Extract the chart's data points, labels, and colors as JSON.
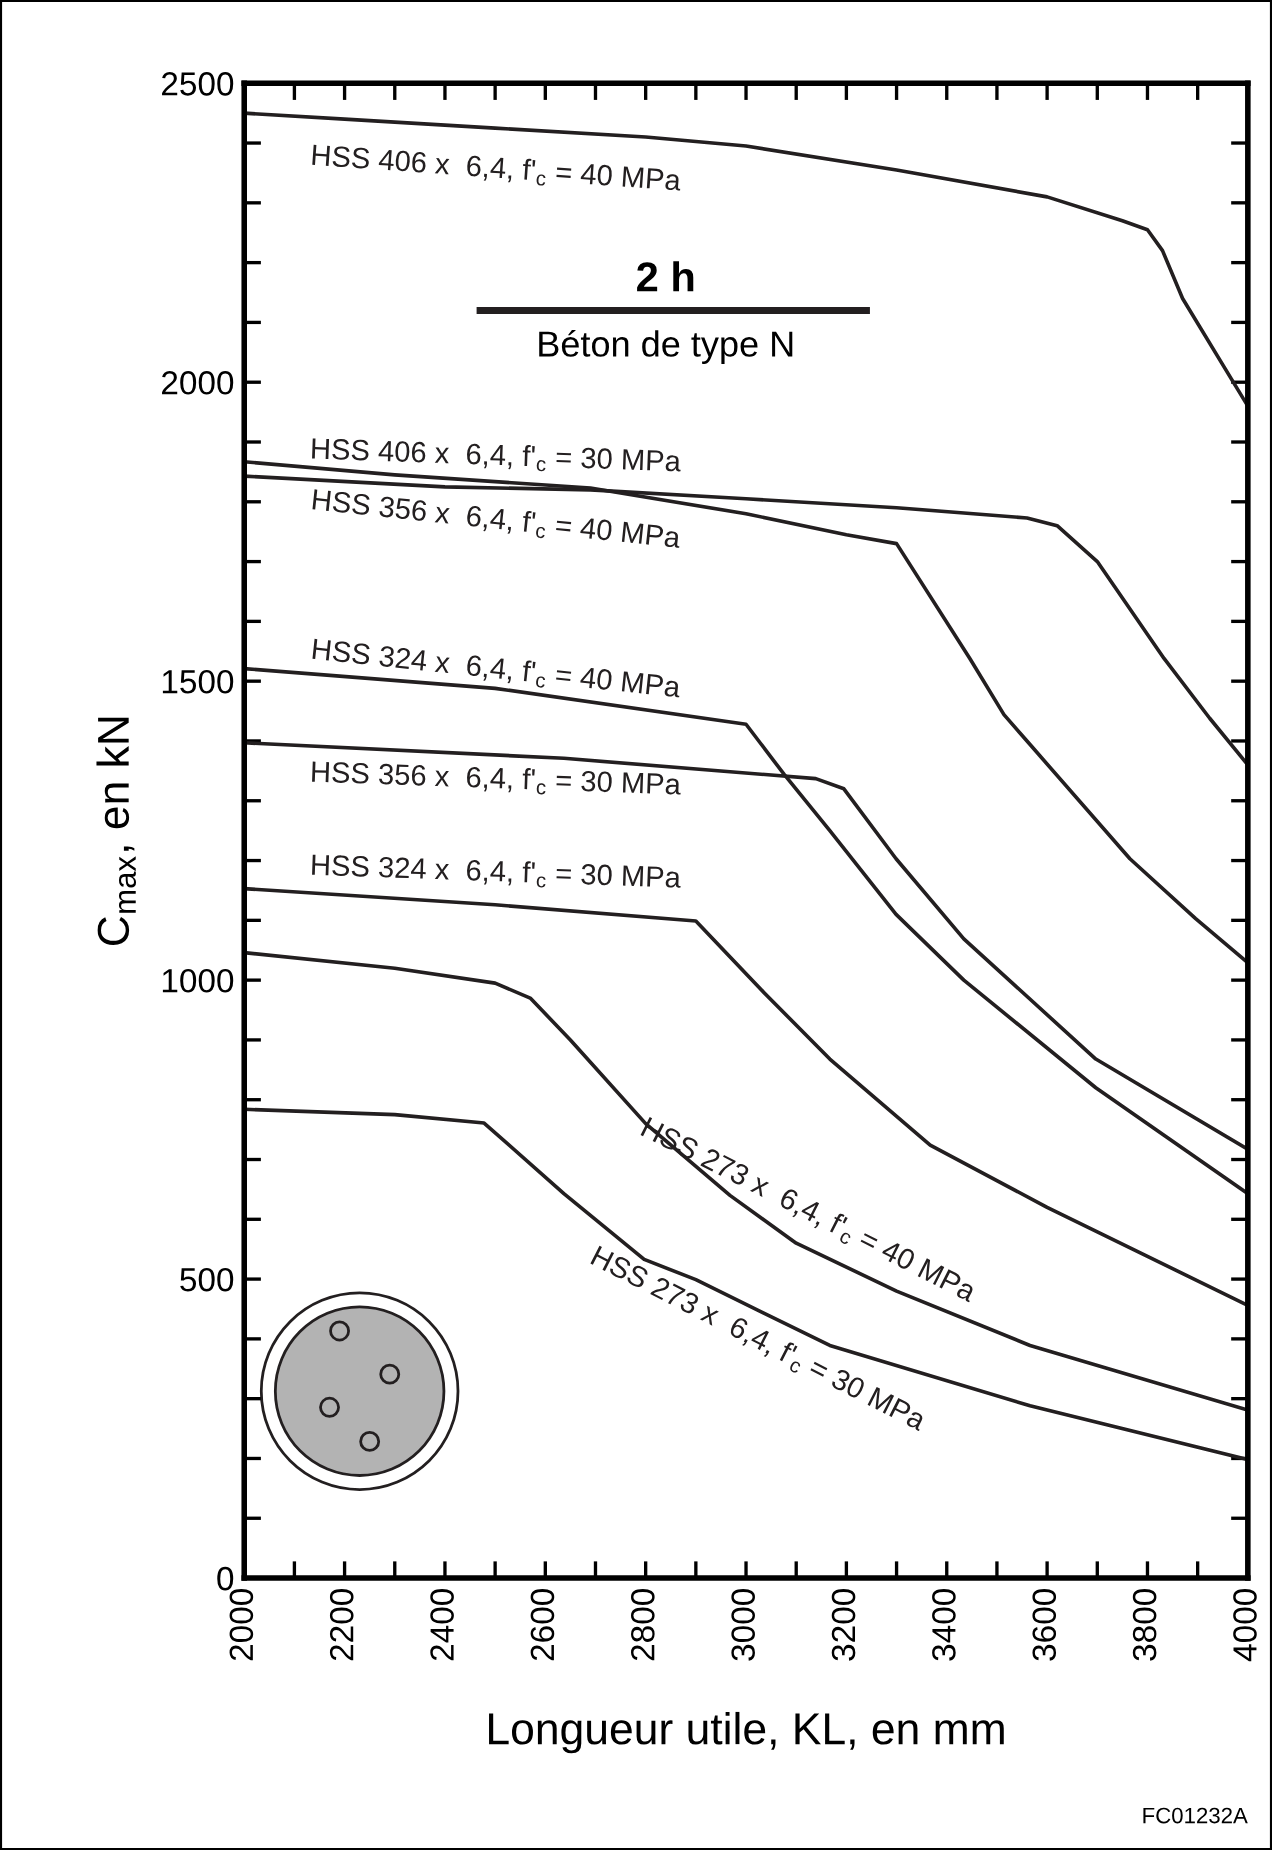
{
  "chart_data": {
    "type": "line",
    "xlabel": "Longueur utile, KL, en mm",
    "ylabel": "C$_{max}$, en kN",
    "xlim": [
      2000,
      4000
    ],
    "xticks": [
      2000,
      {
        "value": 2100,
        "label": null
      },
      2200,
      {
        "value": 2300,
        "label": null
      },
      2400,
      {
        "value": 2500,
        "label": null
      },
      2600,
      {
        "value": 2700,
        "label": null
      },
      2800,
      {
        "value": 2900,
        "label": null
      },
      3000,
      {
        "value": 3100,
        "label": null
      },
      3200,
      {
        "value": 3300,
        "label": null
      },
      3400,
      {
        "value": 3500,
        "label": null
      },
      3600,
      {
        "value": 3700,
        "label": null
      },
      3800,
      {
        "value": 3900,
        "label": null
      },
      4000
    ],
    "ylim": [
      0,
      2500
    ],
    "yticks": [
      0,
      {
        "value": 100,
        "label": null
      },
      {
        "value": 200,
        "label": null
      },
      {
        "value": 300,
        "label": null
      },
      {
        "value": 400,
        "label": null
      },
      500,
      {
        "value": 600,
        "label": null
      },
      {
        "value": 700,
        "label": null
      },
      {
        "value": 800,
        "label": null
      },
      {
        "value": 900,
        "label": null
      },
      1000,
      {
        "value": 1100,
        "label": null
      },
      {
        "value": 1200,
        "label": null
      },
      {
        "value": 1300,
        "label": null
      },
      {
        "value": 1400,
        "label": null
      },
      1500,
      {
        "value": 1600,
        "label": null
      },
      {
        "value": 1700,
        "label": null
      },
      {
        "value": 1800,
        "label": null
      },
      {
        "value": 1900,
        "label": null
      },
      2000,
      {
        "value": 2100,
        "label": null
      },
      {
        "value": 2200,
        "label": null
      },
      {
        "value": 2300,
        "label": null
      },
      {
        "value": 2400,
        "label": null
      },
      2500
    ],
    "grid": false,
    "legend": false,
    "marker": "none",
    "line_style": "solid",
    "annotations": [
      "2 h",
      "Béton de type N",
      "FC01232A"
    ],
    "series": [
      {
        "name": "HSS 406 x  6,4, f'$_{c}$ = 40 MPa",
        "color": "#231f20",
        "x": [
          2000,
          2200,
          2500,
          2800,
          3000,
          3300,
          3600,
          3750,
          3800,
          3830,
          3870,
          4000
        ],
        "values": [
          2450,
          2440,
          2425,
          2410,
          2395,
          2355,
          2310,
          2270,
          2255,
          2220,
          2140,
          1960
        ]
      },
      {
        "name": "HSS 406 x  6,4, f'$_{c}$ = 30 MPa",
        "color": "#231f20",
        "x": [
          2000,
          2400,
          2690,
          3000,
          3300,
          3560,
          3620,
          3700,
          3833,
          3924,
          4000
        ],
        "values": [
          1843,
          1825,
          1820,
          1805,
          1790,
          1773,
          1760,
          1700,
          1538,
          1438,
          1360
        ]
      },
      {
        "name": "HSS 356 x  6,4, f'$_{c}$ = 40 MPa",
        "color": "#231f20",
        "x": [
          2000,
          2300,
          2690,
          3000,
          3200,
          3300,
          3446,
          3514,
          3566,
          3765,
          3896,
          4000
        ],
        "values": [
          1867,
          1845,
          1823,
          1780,
          1745,
          1730,
          1538,
          1444,
          1394,
          1203,
          1103,
          1029
        ]
      },
      {
        "name": "HSS 324 x  6,4, f'$_{c}$ = 40 MPa",
        "color": "#231f20",
        "x": [
          2000,
          2500,
          3000,
          3076,
          3167,
          3299,
          3434,
          3697,
          4000
        ],
        "values": [
          1521,
          1488,
          1428,
          1344,
          1250,
          1110,
          1000,
          820,
          643
        ]
      },
      {
        "name": "HSS 356 x  6,4, f'$_{c}$ = 30 MPa",
        "color": "#231f20",
        "x": [
          2000,
          2637,
          3139,
          3195,
          3299,
          3434,
          3697,
          4000
        ],
        "values": [
          1397,
          1371,
          1337,
          1320,
          1203,
          1069,
          868,
          717
        ]
      },
      {
        "name": "HSS 324 x  6,4, f'$_{c}$ = 30 MPa",
        "color": "#231f20",
        "x": [
          2000,
          2500,
          2900,
          3036,
          3167,
          3367,
          3600,
          4000
        ],
        "values": [
          1153,
          1126,
          1099,
          979,
          868,
          724,
          620,
          456
        ]
      },
      {
        "name": "HSS 273 x  6,4, f'$_{c}$ = 40 MPa",
        "color": "#231f20",
        "x": [
          2000,
          2300,
          2500,
          2570,
          2650,
          2800,
          2968,
          3100,
          3300,
          3566,
          4000
        ],
        "values": [
          1046,
          1020,
          995,
          970,
          900,
          760,
          640,
          560,
          480,
          389,
          281
        ]
      },
      {
        "name": "HSS 273 x  6,4, f'$_{c}$ = 30 MPa",
        "color": "#231f20",
        "x": [
          2000,
          2300,
          2478,
          2637,
          2797,
          2900,
          3167,
          3566,
          4000
        ],
        "values": [
          784,
          775,
          761,
          643,
          533,
          499,
          389,
          288,
          198
        ]
      }
    ]
  }
}
